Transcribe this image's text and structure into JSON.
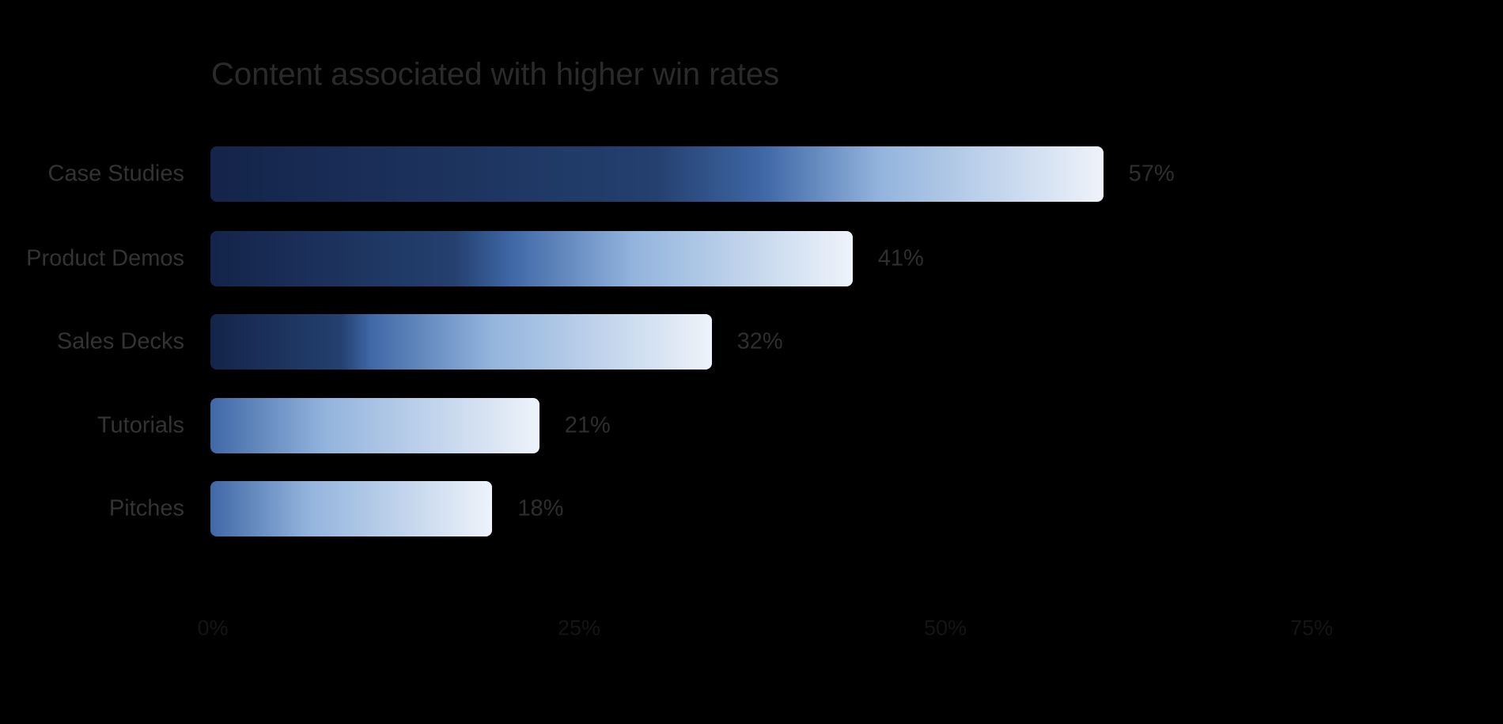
{
  "chart_data": {
    "type": "bar",
    "orientation": "horizontal",
    "title": "Content associated with higher win rates",
    "categories": [
      "Case Studies",
      "Product Demos",
      "Sales Decks",
      "Tutorials",
      "Pitches"
    ],
    "values": [
      57,
      41,
      32,
      21,
      18
    ],
    "value_labels": [
      "57%",
      "41%",
      "32%",
      "21%",
      "18%"
    ],
    "xlabel": "",
    "ylabel": "",
    "xlim": [
      0,
      75
    ],
    "x_ticks": [
      "0%",
      "25%",
      "50%",
      "75%"
    ],
    "x_tick_values": [
      0,
      25,
      50,
      75
    ],
    "grid": false,
    "colors": {
      "dark": "#14244a",
      "mid": "#3f68a6",
      "light": "#93b4dd",
      "end": "#eef3fa"
    }
  }
}
